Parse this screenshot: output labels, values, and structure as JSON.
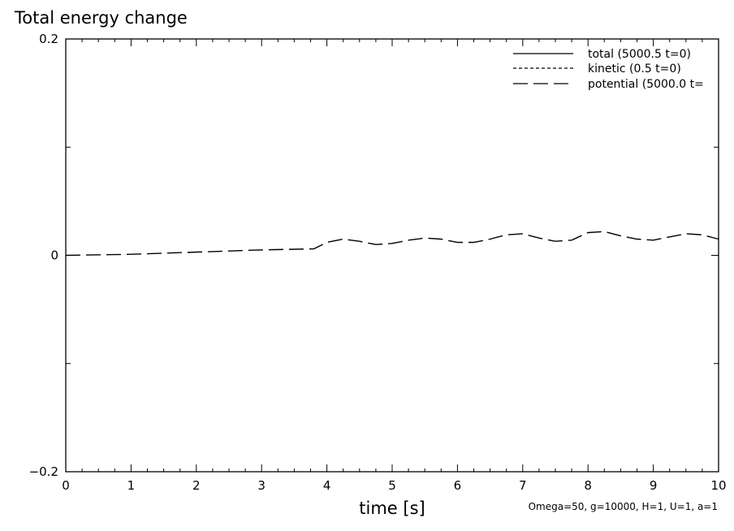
{
  "chart_data": {
    "type": "line",
    "title": "Total energy change",
    "xlabel": "time [s]",
    "ylabel": "",
    "xlim": [
      0,
      10
    ],
    "ylim": [
      -0.2,
      0.2
    ],
    "x_ticks": [
      0,
      1,
      2,
      3,
      4,
      5,
      6,
      7,
      8,
      9,
      10
    ],
    "x_tick_labels": [
      "0",
      "1",
      "2",
      "3",
      "4",
      "5",
      "6",
      "7",
      "8",
      "9",
      "10"
    ],
    "y_ticks": [
      -0.2,
      0,
      0.2
    ],
    "y_tick_labels": [
      "-0.2",
      "0",
      "0.2"
    ],
    "grid": false,
    "legend_position": "top-right",
    "annotation": "Omega=50, g=10000, H=1, U=1, a=1",
    "series": [
      {
        "name": "total (5000.5 t=0)",
        "style": "solid",
        "x": [
          0,
          1,
          2,
          3,
          3.8,
          4,
          4.25,
          4.5,
          4.75,
          5,
          5.25,
          5.5,
          5.75,
          6,
          6.25,
          6.5,
          6.75,
          7,
          7.25,
          7.5,
          7.75,
          8,
          8.25,
          8.5,
          8.75,
          9,
          9.25,
          9.5,
          9.75,
          10
        ],
        "y": [
          0,
          0.001,
          0.003,
          0.005,
          0.006,
          0.012,
          0.015,
          0.013,
          0.01,
          0.011,
          0.014,
          0.016,
          0.015,
          0.012,
          0.012,
          0.015,
          0.019,
          0.02,
          0.016,
          0.013,
          0.014,
          0.021,
          0.022,
          0.018,
          0.015,
          0.014,
          0.017,
          0.02,
          0.019,
          0.015
        ]
      },
      {
        "name": "kinetic (0.5 t=0)",
        "style": "dashed",
        "x": [
          0,
          1,
          2,
          3,
          3.8,
          4,
          4.25,
          4.5,
          4.75,
          5,
          5.25,
          5.5,
          5.75,
          6,
          6.25,
          6.5,
          6.75,
          7,
          7.25,
          7.5,
          7.75,
          8,
          8.25,
          8.5,
          8.75,
          9,
          9.25,
          9.5,
          9.75,
          10
        ],
        "y": [
          0,
          0.001,
          0.003,
          0.005,
          0.006,
          0.012,
          0.015,
          0.013,
          0.01,
          0.011,
          0.014,
          0.016,
          0.015,
          0.012,
          0.012,
          0.015,
          0.019,
          0.02,
          0.016,
          0.013,
          0.014,
          0.021,
          0.022,
          0.018,
          0.015,
          0.014,
          0.017,
          0.02,
          0.019,
          0.015
        ]
      },
      {
        "name": "potential (5000.0 t=",
        "style": "long-dash",
        "x": [
          0,
          1,
          2,
          3,
          3.8,
          4,
          4.25,
          4.5,
          4.75,
          5,
          5.25,
          5.5,
          5.75,
          6,
          6.25,
          6.5,
          6.75,
          7,
          7.25,
          7.5,
          7.75,
          8,
          8.25,
          8.5,
          8.75,
          9,
          9.25,
          9.5,
          9.75,
          10
        ],
        "y": [
          0,
          0.001,
          0.003,
          0.005,
          0.006,
          0.012,
          0.015,
          0.013,
          0.01,
          0.011,
          0.014,
          0.016,
          0.015,
          0.012,
          0.012,
          0.015,
          0.019,
          0.02,
          0.016,
          0.013,
          0.014,
          0.021,
          0.022,
          0.018,
          0.015,
          0.014,
          0.017,
          0.02,
          0.019,
          0.015
        ]
      }
    ]
  }
}
